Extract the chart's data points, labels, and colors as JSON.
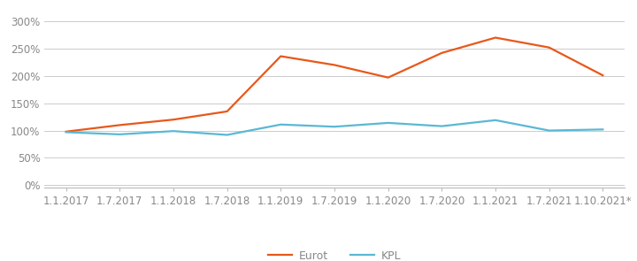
{
  "x_labels": [
    "1.1.2017",
    "1.7.2017",
    "1.1.2018",
    "1.7.2018",
    "1.1.2019",
    "1.7.2019",
    "1.1.2020",
    "1.7.2020",
    "1.1.2021",
    "1.7.2021",
    "1.10.2021*"
  ],
  "x_positions": [
    0,
    1,
    2,
    3,
    4,
    5,
    6,
    7,
    8,
    9,
    10
  ],
  "eurot": [
    0.98,
    1.1,
    1.2,
    1.35,
    2.36,
    2.2,
    1.97,
    2.42,
    2.7,
    2.52,
    2.01
  ],
  "kpl": [
    0.97,
    0.93,
    0.99,
    0.92,
    1.11,
    1.07,
    1.14,
    1.08,
    1.19,
    1.0,
    1.02
  ],
  "eurot_color": "#E8581A",
  "kpl_color": "#5BB8D4",
  "line_width": 1.6,
  "yticks": [
    0.0,
    0.5,
    1.0,
    1.5,
    2.0,
    2.5,
    3.0
  ],
  "ylim": [
    -0.05,
    3.15
  ],
  "grid_color": "#cccccc",
  "bg_color": "#ffffff",
  "legend_eurot": "Eurot",
  "legend_kpl": "KPL",
  "tick_fontsize": 8.5,
  "legend_fontsize": 9,
  "tick_color": "#888888"
}
